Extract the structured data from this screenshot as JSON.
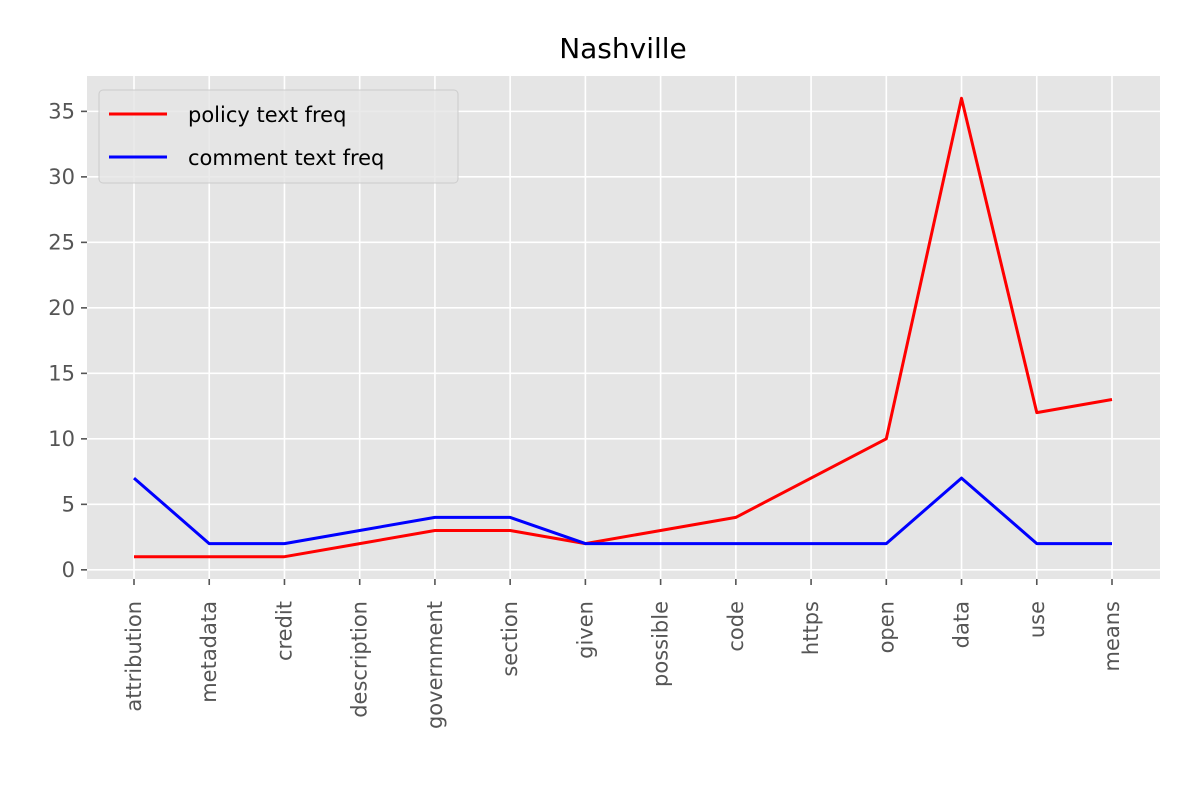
{
  "chart_data": {
    "type": "line",
    "title": "Nashville",
    "xlabel": "",
    "ylabel": "",
    "categories": [
      "attribution",
      "metadata",
      "credit",
      "description",
      "government",
      "section",
      "given",
      "possible",
      "code",
      "https",
      "open",
      "data",
      "use",
      "means"
    ],
    "series": [
      {
        "name": "policy text freq",
        "color": "#ff0000",
        "values": [
          1,
          1,
          1,
          2,
          3,
          3,
          2,
          3,
          4,
          7,
          10,
          36,
          12,
          13
        ]
      },
      {
        "name": "comment text freq",
        "color": "#0000ff",
        "values": [
          7,
          2,
          2,
          3,
          4,
          4,
          2,
          2,
          2,
          2,
          2,
          7,
          2,
          2
        ]
      }
    ],
    "ylim": [
      -0.7,
      37.7
    ],
    "yticks": [
      0,
      5,
      10,
      15,
      20,
      25,
      30,
      35
    ],
    "grid": true,
    "legend_position": "top-left",
    "style": {
      "background": "#e5e5e5",
      "grid_color": "#ffffff"
    }
  }
}
